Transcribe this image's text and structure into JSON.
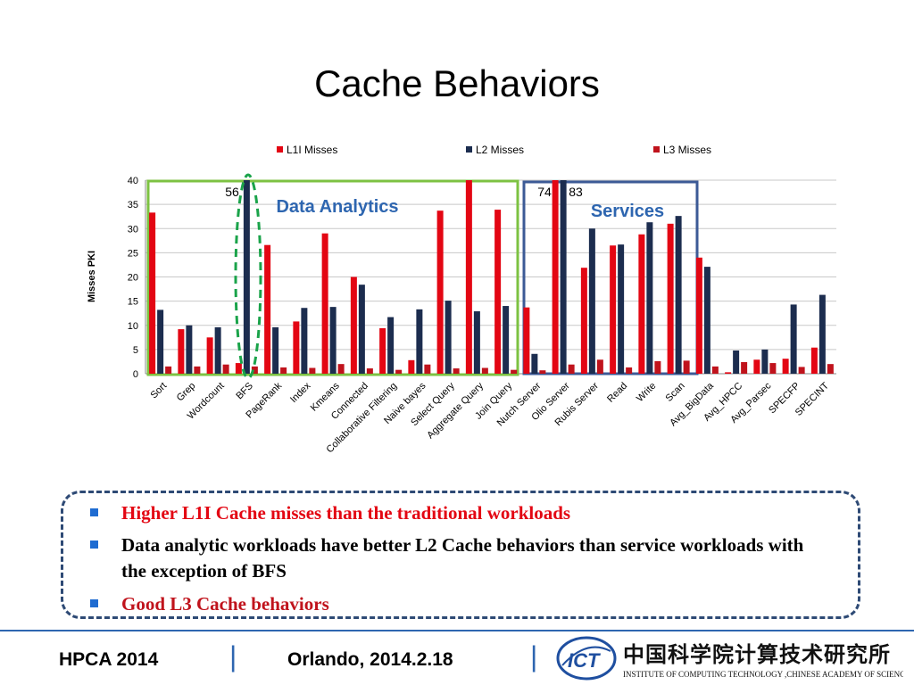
{
  "slide": {
    "title": "Cache Behaviors"
  },
  "chart_data": {
    "type": "bar",
    "ylabel": "Misses PKI",
    "ylim": [
      0,
      40
    ],
    "yticks": [
      0,
      5,
      10,
      15,
      20,
      25,
      30,
      35,
      40
    ],
    "legend_position": "top",
    "categories": [
      "Sort",
      "Grep",
      "Wordcount",
      "BFS",
      "PageRank",
      "Index",
      "Kmeans",
      "Connected",
      "Collaborative Filtering",
      "Naive bayes",
      "Select Query",
      "Aggregate Query",
      "Join Query",
      "Nutch Server",
      "Olio Server",
      "Rubis Server",
      "Read",
      "Write",
      "Scan",
      "Avg_BigData",
      "Avg_HPCC",
      "Avg_Parsec",
      "SPECFP",
      "SPECINT"
    ],
    "series": [
      {
        "name": "L1I Misses",
        "color": "#e30613",
        "values": [
          33.3,
          9.2,
          7.5,
          2.2,
          26.6,
          10.8,
          29.0,
          20.0,
          9.4,
          2.8,
          33.7,
          40,
          33.9,
          13.7,
          40,
          21.9,
          26.5,
          28.8,
          31.0,
          24.0,
          0.3,
          2.9,
          3.1,
          5.4
        ]
      },
      {
        "name": "L2 Misses",
        "color": "#1c2d4f",
        "values": [
          13.2,
          10.0,
          9.6,
          40,
          9.6,
          13.6,
          13.8,
          18.4,
          11.7,
          13.3,
          15.1,
          12.9,
          14.0,
          4.1,
          40,
          30.0,
          26.7,
          31.3,
          32.6,
          22.1,
          4.8,
          5.0,
          14.3,
          16.3
        ]
      },
      {
        "name": "L3 Misses",
        "color": "#c0131c",
        "values": [
          1.5,
          1.5,
          1.9,
          1.5,
          1.3,
          1.2,
          2.0,
          1.1,
          0.8,
          1.9,
          1.1,
          1.2,
          0.8,
          0.7,
          1.9,
          2.9,
          1.3,
          2.6,
          2.7,
          1.5,
          2.4,
          2.2,
          1.4,
          2.0
        ]
      }
    ],
    "value_labels": [
      {
        "text": "56",
        "category": "BFS"
      },
      {
        "text": "74",
        "category": "Olio Server"
      },
      {
        "text": "83",
        "category": "Olio Server"
      }
    ],
    "annotations": [
      {
        "text": "Data Analytics",
        "color": "#2e66b0"
      },
      {
        "text": "Services",
        "color": "#2e66b0"
      }
    ]
  },
  "bullets": [
    {
      "text": "Higher L1I Cache misses than the traditional workloads",
      "color": "#e30613"
    },
    {
      "text": "Data analytic workloads have better L2 Cache behaviors than service workloads with the exception of  BFS",
      "color": "#000000"
    },
    {
      "text": "Good L3 Cache behaviors",
      "color": "#c0131c"
    }
  ],
  "footer": {
    "left": "HPCA  2014",
    "separator": "|",
    "middle": "Orlando, 2014.2.18",
    "logo_text": "ICT",
    "logo_chinese": "中国科学院计算技术研究所",
    "logo_english": "INSTITUTE OF  COMPUTING TECHNOLOGY ,CHINESE ACADEMY OF SCIENCES"
  }
}
